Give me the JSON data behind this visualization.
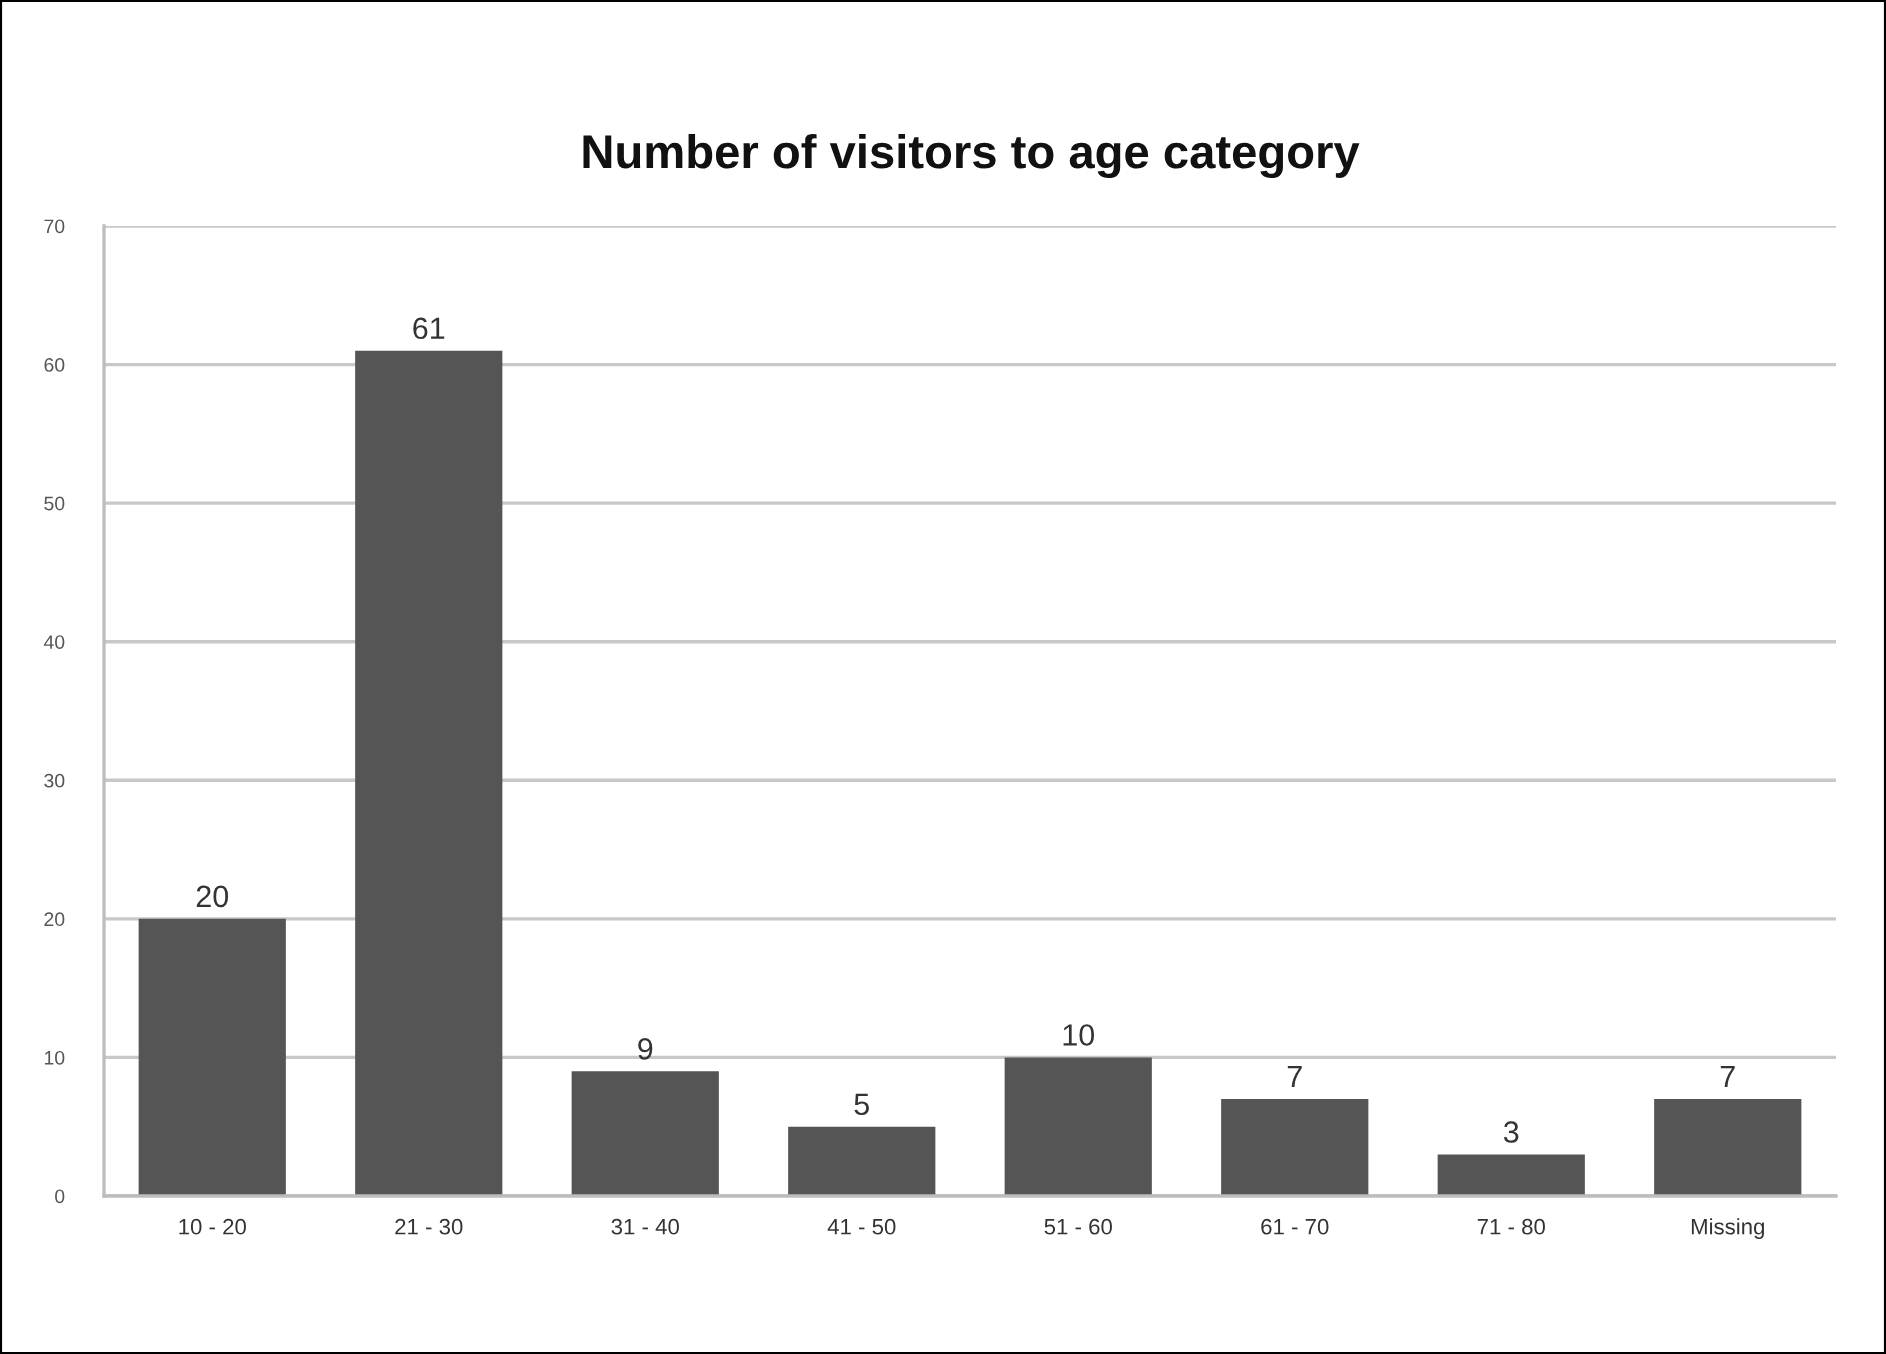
{
  "chart_data": {
    "type": "bar",
    "title": "Number of visitors to age category",
    "categories": [
      "10 - 20",
      "21 - 30",
      "31 - 40",
      "41 - 50",
      "51 - 60",
      "61 - 70",
      "71 - 80",
      "Missing"
    ],
    "values": [
      20,
      61,
      9,
      5,
      10,
      7,
      3,
      7
    ],
    "color": "#555555",
    "ylim": [
      0,
      70
    ],
    "yticks": [
      0,
      10,
      20,
      30,
      40,
      50,
      60,
      70
    ],
    "grid": "y",
    "data_labels": true
  }
}
